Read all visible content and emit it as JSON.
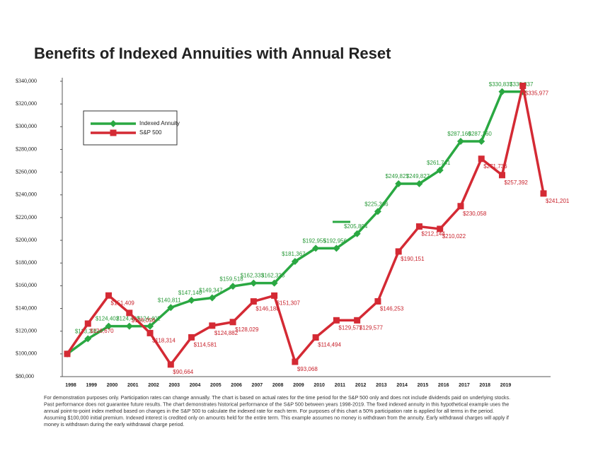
{
  "chart_data": {
    "type": "line",
    "title": "Benefits of Indexed Annuities with Annual Reset",
    "categories": [
      "1998",
      "1999",
      "2000",
      "2001",
      "2002",
      "2003",
      "2004",
      "2005",
      "2006",
      "2007",
      "2008",
      "2009",
      "2010",
      "2011",
      "2012",
      "2013",
      "2014",
      "2015",
      "2016",
      "2017",
      "2018",
      "2019",
      null,
      null
    ],
    "series": [
      {
        "name": "Indexed Annuity",
        "color": "#2aa842",
        "marker": "diamond",
        "values": [
          100000,
          113335,
          124402,
          124402,
          124402,
          140811,
          147140,
          149347,
          159518,
          162333,
          162333,
          181367,
          192955,
          192956,
          205804,
          225366,
          249827,
          249827,
          261741,
          287160,
          287160,
          330837,
          330837,
          null
        ],
        "value_labels": [
          null,
          "$113,335",
          "$124,402",
          "$124,402",
          "$124,402",
          "$140,811",
          "$147,140",
          "$149,347",
          "$159,518",
          "$162,333",
          "$162,333",
          "$181,367",
          "$192,955",
          "$192,956",
          "$205,804",
          "$225,366",
          "$249,827",
          "$249,827",
          "$261,741",
          "$287,160",
          "$287,160",
          "$330,837",
          "$330,837",
          null
        ]
      },
      {
        "name": "S&P 500",
        "color": "#d42a34",
        "marker": "square",
        "values": [
          100000,
          126670,
          151409,
          136056,
          118314,
          90664,
          114581,
          124882,
          128029,
          146188,
          151307,
          93068,
          114494,
          129577,
          129577,
          146253,
          190151,
          212144,
          210022,
          230058,
          271736,
          257392,
          335977,
          241201
        ],
        "value_labels": [
          null,
          "$126,670",
          "$151,409",
          "$136,056",
          "$118,314",
          "$90,664",
          "$114,581",
          "$124,882",
          "$128,029",
          "$146,188",
          "$151,307",
          "$93,068",
          "$114,494",
          "$129,577",
          "$129,577",
          "$146,253",
          "$190,151",
          "$212,144",
          "$210,022",
          "$230,058",
          "$271,736",
          "$257,392",
          "$335,977",
          "$241,201"
        ]
      }
    ],
    "ylim": [
      80000,
      340000
    ],
    "yticks": [
      {
        "value": 80000,
        "label": "$80,000"
      },
      {
        "value": 100000,
        "label": "$100,000"
      },
      {
        "value": 120000,
        "label": "$120,000"
      },
      {
        "value": 140000,
        "label": "$140,000"
      },
      {
        "value": 160000,
        "label": "$160,000"
      },
      {
        "value": 180000,
        "label": "$180,000"
      },
      {
        "value": 200000,
        "label": "$200,000"
      },
      {
        "value": 220000,
        "label": "$220,000"
      },
      {
        "value": 240000,
        "label": "$240,000"
      },
      {
        "value": 260000,
        "label": "$260,000"
      },
      {
        "value": 280000,
        "label": "$280,000"
      },
      {
        "value": 300000,
        "label": "$300,000"
      },
      {
        "value": 320000,
        "label": "$320,000"
      },
      {
        "value": 340000,
        "label": "$340,000"
      }
    ],
    "grid": false,
    "legend": "upper left",
    "footnote": [
      "For demonstration purposes only. Participation rates can change annually. The chart is based on actual rates for the time period for the S&P 500 only and does not include dividends paid on underlying stocks.",
      "Past performance does not guarantee future results. The chart demonstrates historical performance of the S&P 500 between years 1998-2019. The fixed indexed annuity in this hypothetical example uses the",
      "annual point-to-point index method based on changes in the S&P 500 to calculate the indexed rate for each term. For purposes of this chart a 50% participation rate is applied for all terms in the period.",
      "Assuming $100,000 initial premium. Indexed interest is credited only on amounts held for the entire term. This example assumes no money is withdrawn from the annuity. Early withdrawal charges will apply if",
      "money is withdrawn during the early withdrawal charge period."
    ]
  }
}
